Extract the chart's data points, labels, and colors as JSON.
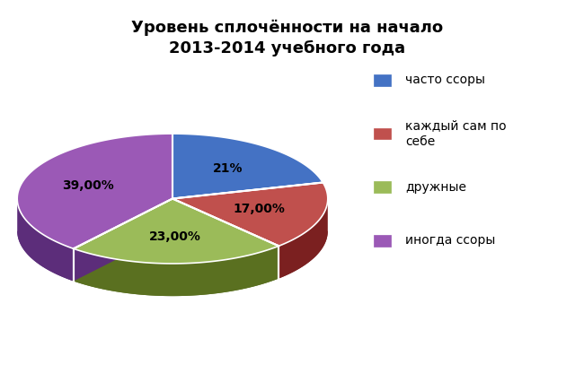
{
  "title": "Уровень сплочённости на начало\n2013-2014 учебного года",
  "slices": [
    {
      "label": "часто ссоры",
      "value": 21,
      "pct_label": "21%",
      "color": "#4472C4",
      "dark": "#2A4A8A"
    },
    {
      "label": "каждый сам по\nсебе",
      "value": 17,
      "pct_label": "17,00%",
      "color": "#C0504D",
      "dark": "#7B2020"
    },
    {
      "label": "дружные",
      "value": 23,
      "pct_label": "23,00%",
      "color": "#9BBB59",
      "dark": "#5A7020"
    },
    {
      "label": "иногда ссоры",
      "value": 39,
      "pct_label": "39,00%",
      "color": "#9B59B6",
      "dark": "#5C2D7A"
    }
  ],
  "background_color": "#FFFFFF",
  "title_fontsize": 13,
  "label_fontsize": 10,
  "legend_fontsize": 10,
  "pcx": 3.0,
  "pcy": 4.8,
  "prx": 2.7,
  "pry": 1.7,
  "pdepth": 0.85,
  "fig_xlim": 10,
  "fig_ylim": 10
}
